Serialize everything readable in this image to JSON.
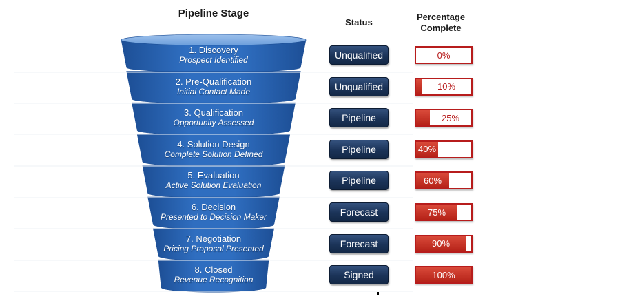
{
  "headers": {
    "stage": "Pipeline Stage",
    "status": "Status",
    "percent_line1": "Percentage",
    "percent_line2": "Complete"
  },
  "stages": [
    {
      "title": "1. Discovery",
      "subtitle": "Prospect Identified",
      "status": "Unqualified",
      "percent_label": "0%",
      "percent": 0
    },
    {
      "title": "2. Pre-Qualification",
      "subtitle": "Initial Contact Made",
      "status": "Unqualified",
      "percent_label": "10%",
      "percent": 10
    },
    {
      "title": "3. Qualification",
      "subtitle": "Opportunity Assessed",
      "status": "Pipeline",
      "percent_label": "25%",
      "percent": 25
    },
    {
      "title": "4. Solution Design",
      "subtitle": "Complete Solution Defined",
      "status": "Pipeline",
      "percent_label": "40%",
      "percent": 40
    },
    {
      "title": "5. Evaluation",
      "subtitle": "Active Solution Evaluation",
      "status": "Pipeline",
      "percent_label": "60%",
      "percent": 60
    },
    {
      "title": "6. Decision",
      "subtitle": "Presented to Decision Maker",
      "status": "Forecast",
      "percent_label": "75%",
      "percent": 75
    },
    {
      "title": "7. Negotiation",
      "subtitle": "Pricing Proposal Presented",
      "status": "Forecast",
      "percent_label": "90%",
      "percent": 90
    },
    {
      "title": "8. Closed",
      "subtitle": "Revenue Recognition",
      "status": "Signed",
      "percent_label": "100%",
      "percent": 100
    }
  ],
  "colors": {
    "funnel_top": "#6c9fdc",
    "funnel_body": "#2f6ec0",
    "funnel_dark": "#1d4f96",
    "status_bg": "#1b3358",
    "percent_fill": "#c0392b",
    "percent_border": "#b71c1c"
  }
}
